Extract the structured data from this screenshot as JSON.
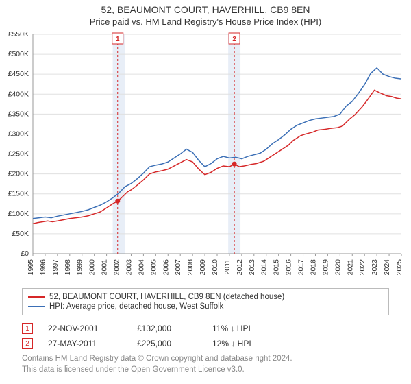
{
  "title": "52, BEAUMONT COURT, HAVERHILL, CB9 8EN",
  "subtitle": "Price paid vs. HM Land Registry's House Price Index (HPI)",
  "colors": {
    "series_red": "#d62728",
    "series_blue": "#3b6fb6",
    "grid": "#e0e0e0",
    "axis": "#999999",
    "text": "#333333",
    "footnote": "#888888",
    "marker_box_border": "#d62728",
    "shade_fill": "#e8eef7",
    "background": "#ffffff"
  },
  "chart": {
    "type": "line",
    "x_axis": {
      "start_year": 1995,
      "end_year": 2025,
      "ticks": [
        1995,
        1996,
        1997,
        1998,
        1999,
        2000,
        2001,
        2002,
        2003,
        2004,
        2005,
        2006,
        2007,
        2008,
        2009,
        2010,
        2011,
        2012,
        2013,
        2014,
        2015,
        2016,
        2017,
        2018,
        2019,
        2020,
        2021,
        2022,
        2023,
        2024,
        2025
      ],
      "label_fontsize": 10.5,
      "label_rotation": -90
    },
    "y_axis": {
      "min": 0,
      "max": 550000,
      "tick_step": 50000,
      "tick_labels": [
        "£0",
        "£50K",
        "£100K",
        "£150K",
        "£200K",
        "£250K",
        "£300K",
        "£350K",
        "£400K",
        "£450K",
        "£500K",
        "£550K"
      ],
      "label_fontsize": 10.5
    },
    "shaded_ranges": [
      {
        "from_year": 2001.5,
        "to_year": 2002.5
      },
      {
        "from_year": 2010.9,
        "to_year": 2011.9
      }
    ],
    "vertical_markers": [
      {
        "n": "1",
        "year": 2001.9,
        "dot_y": 132000
      },
      {
        "n": "2",
        "year": 2011.4,
        "dot_y": 225000
      }
    ],
    "series": [
      {
        "name": "52, BEAUMONT COURT, HAVERHILL, CB9 8EN (detached house)",
        "color_ref": "series_red",
        "points": [
          [
            1995.0,
            75000
          ],
          [
            1995.4,
            78000
          ],
          [
            1995.8,
            80000
          ],
          [
            1996.2,
            82000
          ],
          [
            1996.6,
            80000
          ],
          [
            1997.0,
            82000
          ],
          [
            1997.5,
            85000
          ],
          [
            1998.0,
            88000
          ],
          [
            1998.5,
            90000
          ],
          [
            1999.0,
            92000
          ],
          [
            1999.5,
            95000
          ],
          [
            2000.0,
            100000
          ],
          [
            2000.5,
            105000
          ],
          [
            2001.0,
            115000
          ],
          [
            2001.5,
            125000
          ],
          [
            2001.9,
            132000
          ],
          [
            2002.2,
            140000
          ],
          [
            2002.7,
            155000
          ],
          [
            2003.0,
            160000
          ],
          [
            2003.5,
            172000
          ],
          [
            2004.0,
            185000
          ],
          [
            2004.5,
            200000
          ],
          [
            2005.0,
            205000
          ],
          [
            2005.5,
            208000
          ],
          [
            2006.0,
            212000
          ],
          [
            2006.5,
            220000
          ],
          [
            2007.0,
            228000
          ],
          [
            2007.5,
            236000
          ],
          [
            2008.0,
            230000
          ],
          [
            2008.5,
            212000
          ],
          [
            2009.0,
            198000
          ],
          [
            2009.5,
            204000
          ],
          [
            2010.0,
            214000
          ],
          [
            2010.5,
            220000
          ],
          [
            2011.0,
            218000
          ],
          [
            2011.4,
            225000
          ],
          [
            2011.8,
            218000
          ],
          [
            2012.2,
            220000
          ],
          [
            2012.8,
            224000
          ],
          [
            2013.2,
            226000
          ],
          [
            2013.8,
            232000
          ],
          [
            2014.2,
            240000
          ],
          [
            2014.8,
            252000
          ],
          [
            2015.2,
            260000
          ],
          [
            2015.8,
            272000
          ],
          [
            2016.2,
            284000
          ],
          [
            2016.8,
            296000
          ],
          [
            2017.2,
            300000
          ],
          [
            2017.8,
            305000
          ],
          [
            2018.2,
            310000
          ],
          [
            2018.8,
            312000
          ],
          [
            2019.2,
            314000
          ],
          [
            2019.8,
            316000
          ],
          [
            2020.2,
            320000
          ],
          [
            2020.8,
            338000
          ],
          [
            2021.2,
            348000
          ],
          [
            2021.8,
            368000
          ],
          [
            2022.2,
            384000
          ],
          [
            2022.8,
            410000
          ],
          [
            2023.2,
            404000
          ],
          [
            2023.8,
            396000
          ],
          [
            2024.2,
            394000
          ],
          [
            2024.6,
            390000
          ],
          [
            2025.0,
            388000
          ]
        ]
      },
      {
        "name": "HPI: Average price, detached house, West Suffolk",
        "color_ref": "series_blue",
        "points": [
          [
            1995.0,
            88000
          ],
          [
            1995.5,
            90000
          ],
          [
            1996.0,
            92000
          ],
          [
            1996.5,
            90000
          ],
          [
            1997.0,
            94000
          ],
          [
            1997.5,
            97000
          ],
          [
            1998.0,
            100000
          ],
          [
            1998.5,
            103000
          ],
          [
            1999.0,
            106000
          ],
          [
            1999.5,
            110000
          ],
          [
            2000.0,
            116000
          ],
          [
            2000.5,
            122000
          ],
          [
            2001.0,
            130000
          ],
          [
            2001.5,
            140000
          ],
          [
            2002.0,
            152000
          ],
          [
            2002.5,
            168000
          ],
          [
            2003.0,
            176000
          ],
          [
            2003.5,
            188000
          ],
          [
            2004.0,
            202000
          ],
          [
            2004.5,
            218000
          ],
          [
            2005.0,
            222000
          ],
          [
            2005.5,
            225000
          ],
          [
            2006.0,
            230000
          ],
          [
            2006.5,
            240000
          ],
          [
            2007.0,
            250000
          ],
          [
            2007.5,
            262000
          ],
          [
            2008.0,
            254000
          ],
          [
            2008.5,
            234000
          ],
          [
            2009.0,
            218000
          ],
          [
            2009.5,
            226000
          ],
          [
            2010.0,
            238000
          ],
          [
            2010.5,
            244000
          ],
          [
            2011.0,
            240000
          ],
          [
            2011.5,
            242000
          ],
          [
            2012.0,
            238000
          ],
          [
            2012.5,
            244000
          ],
          [
            2013.0,
            248000
          ],
          [
            2013.5,
            252000
          ],
          [
            2014.0,
            262000
          ],
          [
            2014.5,
            276000
          ],
          [
            2015.0,
            286000
          ],
          [
            2015.5,
            298000
          ],
          [
            2016.0,
            312000
          ],
          [
            2016.5,
            322000
          ],
          [
            2017.0,
            328000
          ],
          [
            2017.5,
            334000
          ],
          [
            2018.0,
            338000
          ],
          [
            2018.5,
            340000
          ],
          [
            2019.0,
            342000
          ],
          [
            2019.5,
            344000
          ],
          [
            2020.0,
            350000
          ],
          [
            2020.5,
            370000
          ],
          [
            2021.0,
            382000
          ],
          [
            2021.5,
            402000
          ],
          [
            2022.0,
            424000
          ],
          [
            2022.5,
            452000
          ],
          [
            2023.0,
            466000
          ],
          [
            2023.5,
            450000
          ],
          [
            2024.0,
            444000
          ],
          [
            2024.5,
            440000
          ],
          [
            2025.0,
            438000
          ]
        ]
      }
    ]
  },
  "legend": {
    "items": [
      {
        "color_ref": "series_red",
        "label": "52, BEAUMONT COURT, HAVERHILL, CB9 8EN (detached house)"
      },
      {
        "color_ref": "series_blue",
        "label": "HPI: Average price, detached house, West Suffolk"
      }
    ]
  },
  "transactions": [
    {
      "n": "1",
      "date": "22-NOV-2001",
      "price": "£132,000",
      "vs_hpi": "11% ↓ HPI"
    },
    {
      "n": "2",
      "date": "27-MAY-2011",
      "price": "£225,000",
      "vs_hpi": "12% ↓ HPI"
    }
  ],
  "footnote": {
    "line1": "Contains HM Land Registry data © Crown copyright and database right 2024.",
    "line2": "This data is licensed under the Open Government Licence v3.0."
  }
}
